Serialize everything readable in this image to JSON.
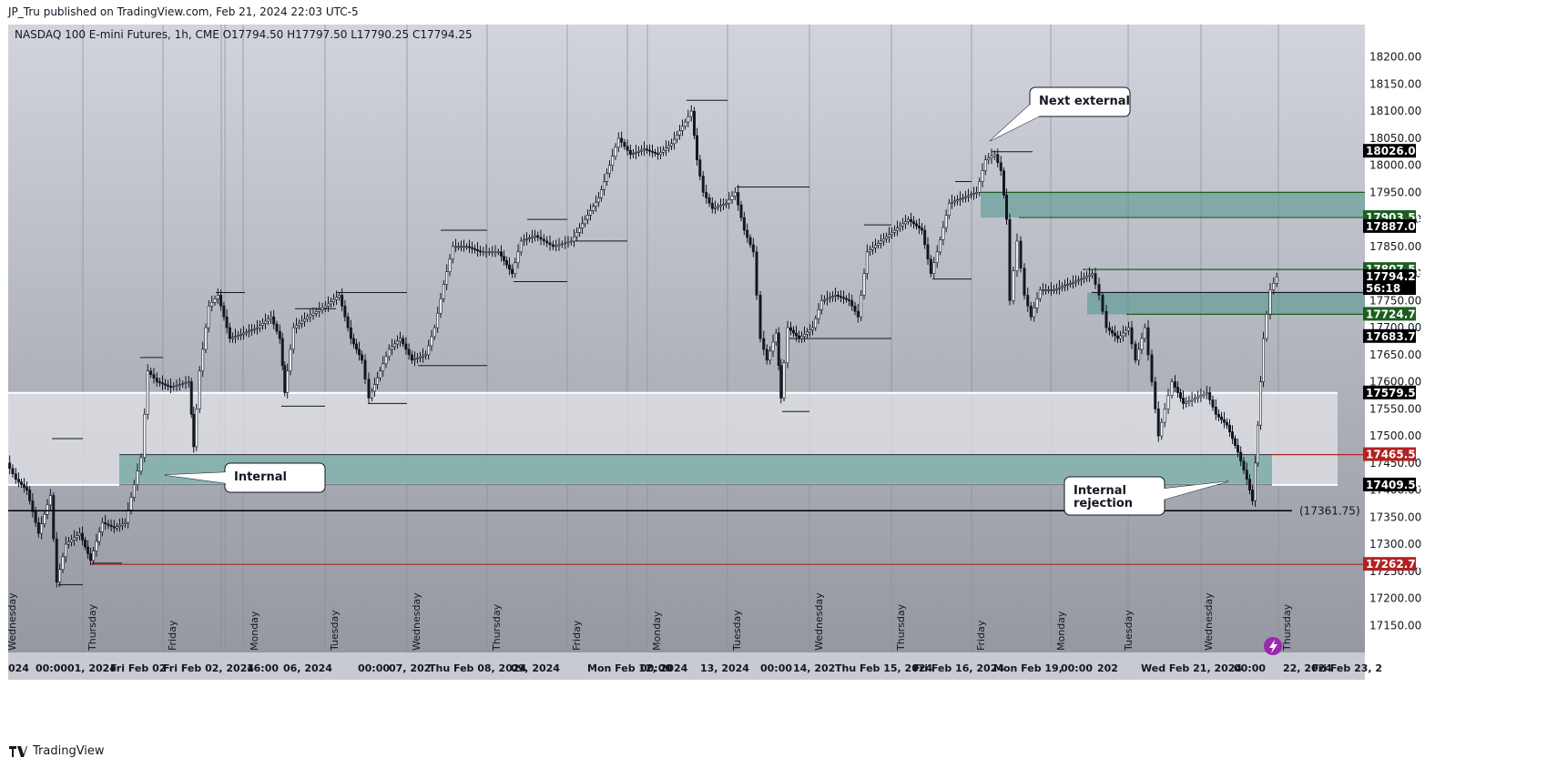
{
  "header": {
    "published": "JP_Tru published on TradingView.com, Feb 21, 2024 22:03 UTC-5"
  },
  "footer": {
    "brand": "TradingView"
  },
  "colors": {
    "background_top": "#d1d4dc",
    "background_bottom": "#9598a1",
    "candle": "#131722",
    "zone_teal": "rgba(77,150,140,0.55)",
    "zone_light": "rgba(235,236,240,0.65)",
    "line_green": "#1b5e20",
    "line_red": "#b22222",
    "label_black": "#000000",
    "label_green": "#1b5e20",
    "label_red": "#b22222"
  },
  "chart_data": {
    "type": "candlestick",
    "symbol_line": "NASDAQ 100 E-mini Futures, 1h, CME",
    "ohlc": {
      "o": "O17794.50",
      "h": "H17797.50",
      "l": "L17790.25",
      "c": "C17794.25"
    },
    "ylim": [
      17100,
      18260
    ],
    "y_ticks": [
      17150,
      17200,
      17250,
      17300,
      17350,
      17400,
      17450,
      17500,
      17550,
      17600,
      17650,
      17700,
      17750,
      17800,
      17850,
      17900,
      17950,
      18000,
      18050,
      18100,
      18150,
      18200
    ],
    "y_tick_labels": [
      "17150.00",
      "17200.00",
      "17250.00",
      "17300.00",
      "17350.00",
      "17400.00",
      "17450.00",
      "17500.00",
      "17550.00",
      "17600.00",
      "17650.00",
      "17700.00",
      "17750.00",
      "17800.00",
      "17850.00",
      "17900.00",
      "17950.00",
      "18000.00",
      "18050.00",
      "18100.00",
      "18150.00",
      "18200.00"
    ],
    "price_labels": [
      {
        "value": 18026.0,
        "text": "18026.00",
        "style": "black"
      },
      {
        "value": 17903.5,
        "text": "17903.50",
        "style": "green"
      },
      {
        "value": 17887.0,
        "text": "17887.00",
        "style": "black"
      },
      {
        "value": 17807.5,
        "text": "17807.50",
        "style": "green"
      },
      {
        "value": 17794.25,
        "text": "17794.25",
        "style": "black",
        "countdown": "56:18"
      },
      {
        "value": 17724.75,
        "text": "17724.75",
        "style": "green"
      },
      {
        "value": 17683.75,
        "text": "17683.75",
        "style": "black"
      },
      {
        "value": 17579.5,
        "text": "17579.50",
        "style": "black"
      },
      {
        "value": 17465.5,
        "text": "17465.50",
        "style": "red"
      },
      {
        "value": 17409.5,
        "text": "17409.50",
        "style": "black"
      },
      {
        "value": 17262.75,
        "text": "17262.75",
        "style": "red"
      }
    ],
    "horizontal_line": {
      "value": 17361.75,
      "label": "(17361.75)"
    },
    "zones": [
      {
        "kind": "light",
        "top": 17579.5,
        "bottom": 17409.5,
        "x_start": 0,
        "x_end": 1460
      },
      {
        "kind": "teal",
        "top": 17465.5,
        "bottom": 17409.5,
        "x_start": 122,
        "x_end": 1388
      },
      {
        "kind": "teal",
        "top": 17950,
        "bottom": 17903.5,
        "x_start": 1068,
        "x_end": 1490
      },
      {
        "kind": "teal",
        "top": 17765,
        "bottom": 17724.75,
        "x_start": 1185,
        "x_end": 1490
      }
    ],
    "levels": [
      {
        "value": 17950,
        "x_start": 1068,
        "x_end": 1490,
        "color": "green"
      },
      {
        "value": 17903.5,
        "x_start": 1110,
        "x_end": 1490,
        "color": "green"
      },
      {
        "value": 17807.5,
        "x_start": 1180,
        "x_end": 1490,
        "color": "green"
      },
      {
        "value": 17765,
        "x_start": 1190,
        "x_end": 1490,
        "color": "black"
      },
      {
        "value": 17724.75,
        "x_start": 1228,
        "x_end": 1490,
        "color": "green"
      },
      {
        "value": 17465.5,
        "x_start": 1388,
        "x_end": 1490,
        "color": "red"
      },
      {
        "value": 17262.75,
        "x_start": 90,
        "x_end": 1490,
        "color": "red"
      }
    ],
    "day_labels": [
      "Wednesday",
      "Thursday",
      "Friday",
      "Monday",
      "Tuesday",
      "Wednesday",
      "Thursday",
      "Friday",
      "Monday",
      "Tuesday",
      "Wednesday",
      "Thursday",
      "Friday",
      "Monday",
      "Tuesday",
      "Wednesday",
      "Thursday"
    ],
    "x_axis_labels": [
      "024",
      "00:00",
      "01, 2024",
      "Fri Feb 02",
      "Fri Feb 02, 2024",
      "16:00",
      "06, 2024",
      "00:00",
      "07, 202",
      "Thu Feb 08, 2024",
      "09, 2024",
      "Mon Feb 12, 2024",
      "00:00",
      "13, 2024",
      "00:00",
      "14, 202",
      "Thu Feb 15, 2024",
      "Fri Feb 16, 2024",
      "Mon Feb 19,",
      "00:00",
      "202",
      "Wed Feb 21, 2024",
      "00:00",
      "22, 2024",
      "Fri Feb 23, 2"
    ],
    "annotations": [
      {
        "text": "Next external"
      },
      {
        "text": "Internal"
      },
      {
        "text": "Internal\nrejection"
      }
    ],
    "swing_points": [
      [
        0,
        17450
      ],
      [
        10,
        17420
      ],
      [
        22,
        17400
      ],
      [
        35,
        17320
      ],
      [
        48,
        17390
      ],
      [
        55,
        17230
      ],
      [
        65,
        17300
      ],
      [
        80,
        17320
      ],
      [
        92,
        17270
      ],
      [
        105,
        17340
      ],
      [
        118,
        17330
      ],
      [
        130,
        17340
      ],
      [
        140,
        17410
      ],
      [
        148,
        17460
      ],
      [
        155,
        17620
      ],
      [
        165,
        17600
      ],
      [
        180,
        17590
      ],
      [
        200,
        17600
      ],
      [
        205,
        17480
      ],
      [
        212,
        17620
      ],
      [
        222,
        17740
      ],
      [
        232,
        17760
      ],
      [
        245,
        17680
      ],
      [
        260,
        17690
      ],
      [
        275,
        17700
      ],
      [
        290,
        17720
      ],
      [
        300,
        17680
      ],
      [
        305,
        17580
      ],
      [
        315,
        17700
      ],
      [
        330,
        17720
      ],
      [
        350,
        17740
      ],
      [
        365,
        17760
      ],
      [
        378,
        17680
      ],
      [
        390,
        17640
      ],
      [
        398,
        17570
      ],
      [
        410,
        17620
      ],
      [
        420,
        17660
      ],
      [
        432,
        17680
      ],
      [
        445,
        17640
      ],
      [
        460,
        17650
      ],
      [
        470,
        17700
      ],
      [
        480,
        17780
      ],
      [
        490,
        17850
      ],
      [
        505,
        17850
      ],
      [
        520,
        17840
      ],
      [
        540,
        17840
      ],
      [
        555,
        17800
      ],
      [
        565,
        17860
      ],
      [
        580,
        17870
      ],
      [
        600,
        17850
      ],
      [
        620,
        17860
      ],
      [
        635,
        17900
      ],
      [
        650,
        17940
      ],
      [
        662,
        18000
      ],
      [
        672,
        18050
      ],
      [
        685,
        18020
      ],
      [
        700,
        18030
      ],
      [
        715,
        18020
      ],
      [
        730,
        18040
      ],
      [
        745,
        18080
      ],
      [
        752,
        18100
      ],
      [
        758,
        18010
      ],
      [
        765,
        17950
      ],
      [
        775,
        17920
      ],
      [
        790,
        17930
      ],
      [
        800,
        17950
      ],
      [
        810,
        17880
      ],
      [
        820,
        17840
      ],
      [
        828,
        17680
      ],
      [
        835,
        17640
      ],
      [
        845,
        17690
      ],
      [
        850,
        17570
      ],
      [
        858,
        17700
      ],
      [
        870,
        17680
      ],
      [
        885,
        17700
      ],
      [
        895,
        17750
      ],
      [
        910,
        17760
      ],
      [
        925,
        17750
      ],
      [
        935,
        17720
      ],
      [
        945,
        17840
      ],
      [
        960,
        17860
      ],
      [
        975,
        17880
      ],
      [
        990,
        17900
      ],
      [
        1005,
        17880
      ],
      [
        1015,
        17800
      ],
      [
        1022,
        17840
      ],
      [
        1035,
        17930
      ],
      [
        1050,
        17940
      ],
      [
        1065,
        17950
      ],
      [
        1075,
        18010
      ],
      [
        1085,
        18020
      ],
      [
        1092,
        17990
      ],
      [
        1098,
        17900
      ],
      [
        1102,
        17750
      ],
      [
        1110,
        17860
      ],
      [
        1118,
        17760
      ],
      [
        1125,
        17720
      ],
      [
        1135,
        17770
      ],
      [
        1150,
        17770
      ],
      [
        1165,
        17780
      ],
      [
        1180,
        17790
      ],
      [
        1192,
        17800
      ],
      [
        1200,
        17760
      ],
      [
        1208,
        17700
      ],
      [
        1220,
        17680
      ],
      [
        1232,
        17700
      ],
      [
        1240,
        17640
      ],
      [
        1250,
        17700
      ],
      [
        1258,
        17600
      ],
      [
        1265,
        17500
      ],
      [
        1272,
        17550
      ],
      [
        1280,
        17600
      ],
      [
        1292,
        17560
      ],
      [
        1305,
        17570
      ],
      [
        1318,
        17580
      ],
      [
        1328,
        17540
      ],
      [
        1340,
        17520
      ],
      [
        1352,
        17470
      ],
      [
        1362,
        17420
      ],
      [
        1368,
        17380
      ],
      [
        1374,
        17520
      ],
      [
        1380,
        17680
      ],
      [
        1388,
        17770
      ],
      [
        1395,
        17794
      ]
    ]
  }
}
